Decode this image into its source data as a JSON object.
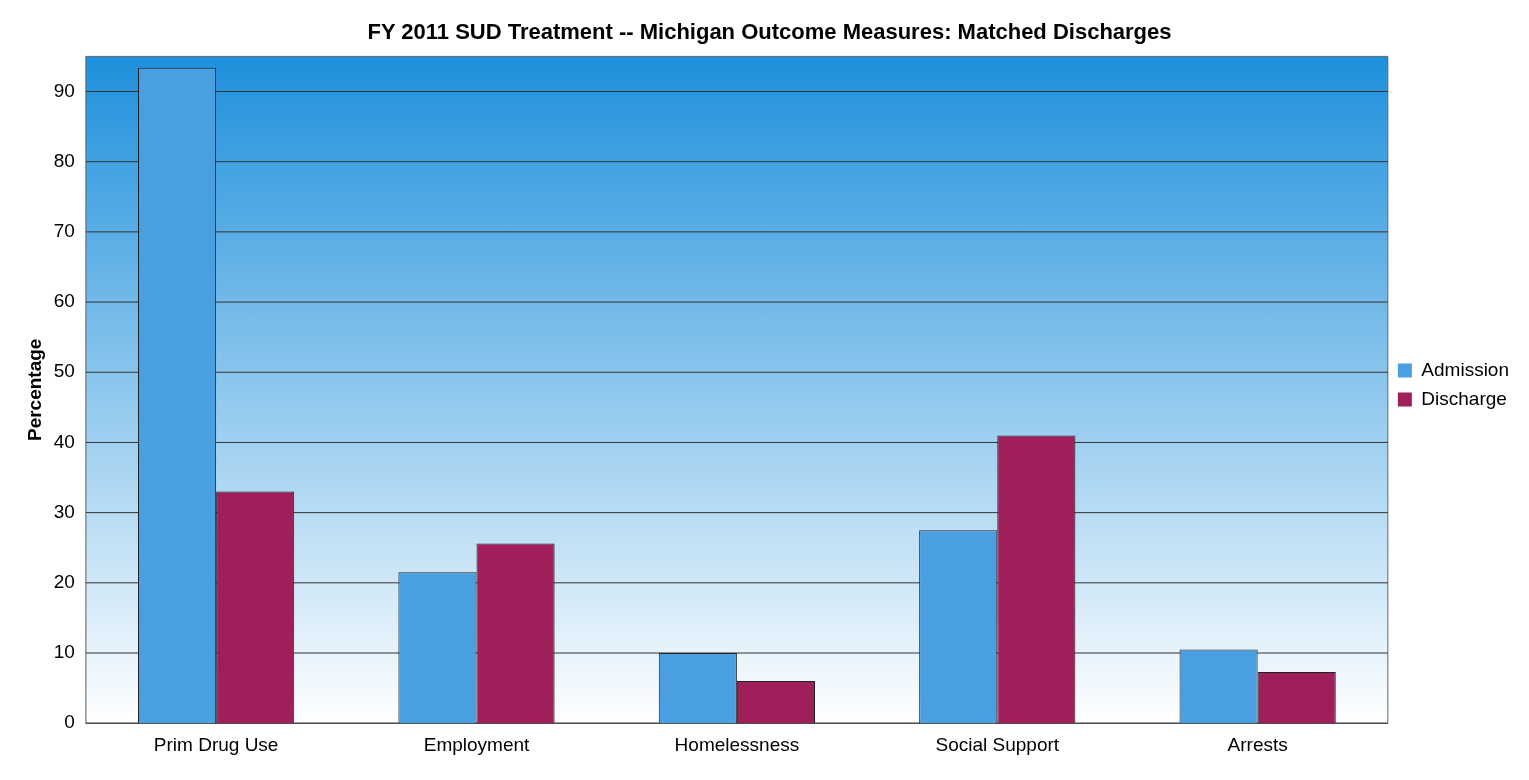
{
  "chart_data": {
    "type": "bar",
    "title": "FY 2011 SUD Treatment -- Michigan Outcome Measures: Matched Discharges",
    "ylabel": "Percentage",
    "categories": [
      "Prim Drug Use",
      "Employment",
      "Homelessness",
      "Social Support",
      "Arrests"
    ],
    "series": [
      {
        "name": "Admission",
        "color": "#4a9fe0",
        "values": [
          93.4,
          21.5,
          10,
          27.5,
          10.5
        ]
      },
      {
        "name": "Discharge",
        "color": "#9e1f5a",
        "values": [
          33,
          25.6,
          6,
          41,
          7.3
        ]
      }
    ],
    "ylim": [
      0,
      95
    ],
    "yticks": [
      0,
      10,
      20,
      30,
      40,
      50,
      60,
      70,
      80,
      90
    ],
    "grid": "y",
    "legend": "right"
  }
}
